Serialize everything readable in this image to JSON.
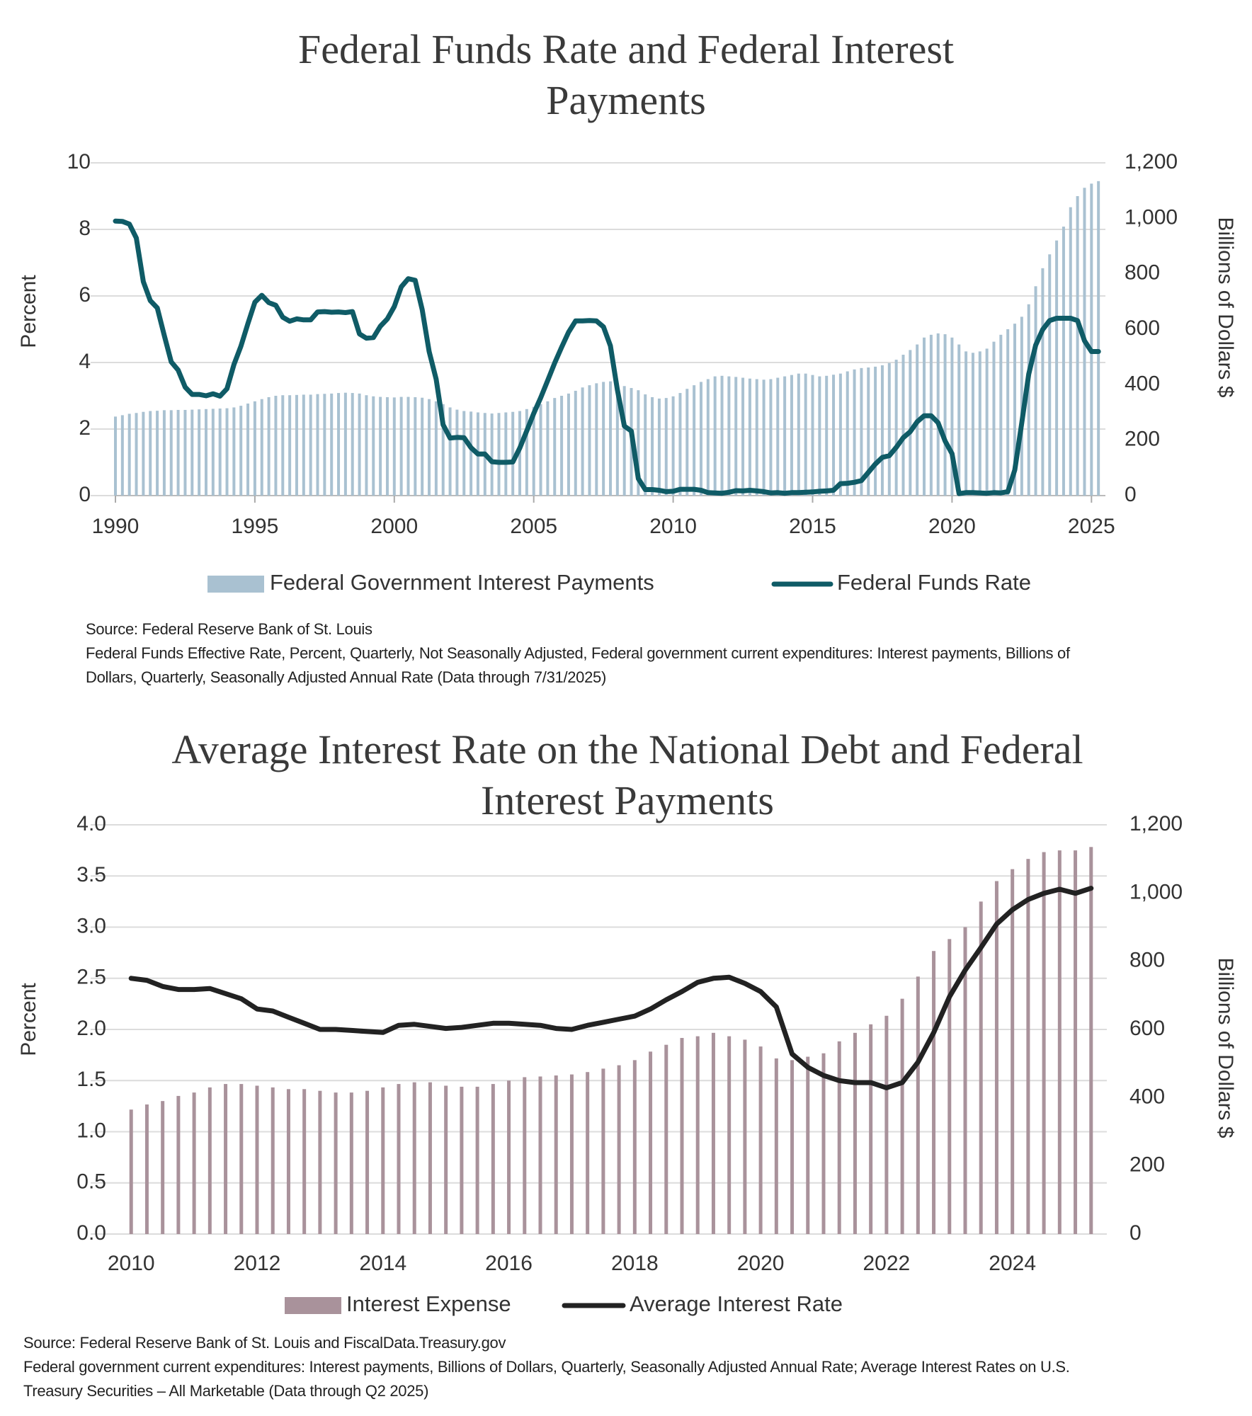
{
  "chart_data": [
    {
      "type": "combo",
      "title": "Federal Funds Rate and Federal Interest Payments",
      "ylabel": "Percent",
      "y2label": "Billions of Dollars $",
      "notes": [
        "Source: Federal Reserve Bank of St. Louis",
        "Federal Funds Effective Rate, Percent, Quarterly, Not Seasonally Adjusted, Federal government current expenditures: Interest payments, Billions of Dollars, Quarterly, Seasonally Adjusted Annual Rate (Data through 7/31/2025)"
      ],
      "x": [
        1990,
        1990.25,
        1990.5,
        1990.75,
        1991,
        1991.25,
        1991.5,
        1991.75,
        1992,
        1992.25,
        1992.5,
        1992.75,
        1993,
        1993.25,
        1993.5,
        1993.75,
        1994,
        1994.25,
        1994.5,
        1994.75,
        1995,
        1995.25,
        1995.5,
        1995.75,
        1996,
        1996.25,
        1996.5,
        1996.75,
        1997,
        1997.25,
        1997.5,
        1997.75,
        1998,
        1998.25,
        1998.5,
        1998.75,
        1999,
        1999.25,
        1999.5,
        1999.75,
        2000,
        2000.25,
        2000.5,
        2000.75,
        2001,
        2001.25,
        2001.5,
        2001.75,
        2002,
        2002.25,
        2002.5,
        2002.75,
        2003,
        2003.25,
        2003.5,
        2003.75,
        2004,
        2004.25,
        2004.5,
        2004.75,
        2005,
        2005.25,
        2005.5,
        2005.75,
        2006,
        2006.25,
        2006.5,
        2006.75,
        2007,
        2007.25,
        2007.5,
        2007.75,
        2008,
        2008.25,
        2008.5,
        2008.75,
        2009,
        2009.25,
        2009.5,
        2009.75,
        2010,
        2010.25,
        2010.5,
        2010.75,
        2011,
        2011.25,
        2011.5,
        2011.75,
        2012,
        2012.25,
        2012.5,
        2012.75,
        2013,
        2013.25,
        2013.5,
        2013.75,
        2014,
        2014.25,
        2014.5,
        2014.75,
        2015,
        2015.25,
        2015.5,
        2015.75,
        2016,
        2016.25,
        2016.5,
        2016.75,
        2017,
        2017.25,
        2017.5,
        2017.75,
        2018,
        2018.25,
        2018.5,
        2018.75,
        2019,
        2019.25,
        2019.5,
        2019.75,
        2020,
        2020.25,
        2020.5,
        2020.75,
        2021,
        2021.25,
        2021.5,
        2021.75,
        2022,
        2022.25,
        2022.5,
        2022.75,
        2023,
        2023.25,
        2023.5,
        2023.75,
        2024,
        2024.25,
        2024.5,
        2024.75,
        2025,
        2025.25
      ],
      "series": [
        {
          "name": "Federal Government Interest Payments",
          "type": "bar",
          "axis": "y2",
          "color": "#a9c1d1",
          "values": [
            285,
            290,
            295,
            298,
            302,
            305,
            306,
            308,
            308,
            309,
            309,
            310,
            311,
            312,
            313,
            314,
            315,
            318,
            324,
            332,
            340,
            348,
            355,
            360,
            362,
            362,
            363,
            364,
            364,
            366,
            367,
            368,
            370,
            371,
            370,
            368,
            362,
            358,
            356,
            355,
            354,
            356,
            356,
            355,
            353,
            348,
            340,
            330,
            318,
            310,
            305,
            303,
            300,
            298,
            296,
            298,
            300,
            302,
            305,
            312,
            320,
            330,
            340,
            352,
            360,
            368,
            378,
            390,
            398,
            405,
            410,
            412,
            405,
            395,
            388,
            380,
            365,
            355,
            350,
            352,
            358,
            370,
            385,
            398,
            410,
            420,
            430,
            432,
            430,
            428,
            425,
            422,
            420,
            418,
            420,
            425,
            430,
            435,
            440,
            440,
            435,
            430,
            432,
            436,
            440,
            448,
            455,
            460,
            462,
            465,
            470,
            478,
            490,
            508,
            525,
            545,
            570,
            580,
            585,
            582,
            570,
            545,
            520,
            515,
            520,
            530,
            555,
            580,
            600,
            620,
            645,
            690,
            755,
            820,
            870,
            920,
            970,
            1040,
            1080,
            1110,
            1125,
            1134
          ]
        },
        {
          "name": "Federal Funds Rate",
          "type": "line",
          "color": "#0f5b66",
          "values": [
            8.25,
            8.24,
            8.16,
            7.74,
            6.43,
            5.86,
            5.64,
            4.82,
            4.02,
            3.77,
            3.26,
            3.04,
            3.04,
            3.0,
            3.06,
            2.99,
            3.21,
            3.94,
            4.49,
            5.17,
            5.81,
            6.02,
            5.8,
            5.72,
            5.36,
            5.24,
            5.31,
            5.28,
            5.28,
            5.52,
            5.53,
            5.51,
            5.52,
            5.5,
            5.53,
            4.86,
            4.73,
            4.75,
            5.09,
            5.31,
            5.68,
            6.27,
            6.52,
            6.47,
            5.59,
            4.33,
            3.5,
            2.13,
            1.73,
            1.75,
            1.74,
            1.44,
            1.25,
            1.25,
            1.02,
            1.0,
            1.0,
            1.01,
            1.43,
            1.95,
            2.47,
            2.94,
            3.46,
            3.98,
            4.46,
            4.91,
            5.25,
            5.25,
            5.26,
            5.25,
            5.07,
            4.5,
            3.18,
            2.09,
            1.94,
            0.51,
            0.18,
            0.18,
            0.16,
            0.12,
            0.13,
            0.19,
            0.19,
            0.19,
            0.16,
            0.09,
            0.08,
            0.07,
            0.1,
            0.15,
            0.14,
            0.16,
            0.14,
            0.12,
            0.08,
            0.09,
            0.07,
            0.09,
            0.09,
            0.1,
            0.11,
            0.13,
            0.14,
            0.16,
            0.36,
            0.37,
            0.4,
            0.45,
            0.7,
            0.95,
            1.15,
            1.2,
            1.45,
            1.74,
            1.92,
            2.22,
            2.4,
            2.4,
            2.19,
            1.64,
            1.26,
            0.06,
            0.09,
            0.09,
            0.08,
            0.07,
            0.09,
            0.08,
            0.12,
            0.77,
            2.19,
            3.65,
            4.52,
            4.99,
            5.26,
            5.33,
            5.33,
            5.33,
            5.26,
            4.65,
            4.33,
            4.33
          ]
        }
      ],
      "xlim": [
        1990,
        2025.5
      ],
      "xticks": [
        1990,
        1995,
        2000,
        2005,
        2010,
        2015,
        2020,
        2025
      ],
      "ylim": [
        0,
        10
      ],
      "yticks": [
        0,
        2,
        4,
        6,
        8,
        10
      ],
      "y2lim": [
        0,
        1200
      ],
      "y2ticks": [
        0,
        200,
        400,
        600,
        800,
        {
          "value": 1000,
          "label": "1,000"
        },
        {
          "value": 1200,
          "label": "1,200"
        }
      ],
      "grid": true,
      "legend": "bottom"
    },
    {
      "type": "combo",
      "title": "Average Interest Rate on the National Debt and Federal Interest Payments",
      "ylabel": "Percent",
      "y2label": "Billions of Dollars $",
      "notes": [
        "Source: Federal Reserve Bank of St. Louis and FiscalData.Treasury.gov",
        "Federal government current expenditures: Interest payments, Billions of Dollars, Quarterly, Seasonally Adjusted Annual Rate; Average Interest Rates on U.S. Treasury Securities – All Marketable (Data through Q2 2025)"
      ],
      "x": [
        2010,
        2010.25,
        2010.5,
        2010.75,
        2011,
        2011.25,
        2011.5,
        2011.75,
        2012,
        2012.25,
        2012.5,
        2012.75,
        2013,
        2013.25,
        2013.5,
        2013.75,
        2014,
        2014.25,
        2014.5,
        2014.75,
        2015,
        2015.25,
        2015.5,
        2015.75,
        2016,
        2016.25,
        2016.5,
        2016.75,
        2017,
        2017.25,
        2017.5,
        2017.75,
        2018,
        2018.25,
        2018.5,
        2018.75,
        2019,
        2019.25,
        2019.5,
        2019.75,
        2020,
        2020.25,
        2020.5,
        2020.75,
        2021,
        2021.25,
        2021.5,
        2021.75,
        2022,
        2022.25,
        2022.5,
        2022.75,
        2023,
        2023.25,
        2023.5,
        2023.75,
        2024,
        2024.25,
        2024.5,
        2024.75,
        2025,
        2025.25
      ],
      "series": [
        {
          "name": "Interest Expense",
          "type": "bar",
          "axis": "y2",
          "color": "#a9929b",
          "values": [
            365,
            380,
            390,
            405,
            415,
            430,
            440,
            440,
            435,
            430,
            425,
            425,
            420,
            415,
            415,
            420,
            430,
            440,
            445,
            445,
            435,
            432,
            432,
            440,
            450,
            460,
            462,
            465,
            468,
            475,
            485,
            495,
            510,
            535,
            555,
            575,
            580,
            590,
            580,
            570,
            550,
            515,
            510,
            520,
            530,
            565,
            590,
            615,
            640,
            690,
            755,
            830,
            865,
            900,
            975,
            1035,
            1070,
            1100,
            1120,
            1125,
            1125,
            1135
          ]
        },
        {
          "name": "Average Interest Rate",
          "type": "line",
          "color": "#222222",
          "values": [
            2.5,
            2.48,
            2.42,
            2.39,
            2.39,
            2.4,
            2.35,
            2.3,
            2.2,
            2.18,
            2.12,
            2.06,
            2.0,
            2.0,
            1.99,
            1.98,
            1.97,
            2.04,
            2.05,
            2.03,
            2.01,
            2.02,
            2.04,
            2.06,
            2.06,
            2.05,
            2.04,
            2.01,
            2.0,
            2.04,
            2.07,
            2.1,
            2.13,
            2.2,
            2.29,
            2.37,
            2.46,
            2.5,
            2.51,
            2.45,
            2.37,
            2.22,
            1.76,
            1.63,
            1.55,
            1.5,
            1.48,
            1.48,
            1.43,
            1.48,
            1.68,
            1.97,
            2.32,
            2.58,
            2.8,
            3.03,
            3.17,
            3.27,
            3.33,
            3.37,
            3.33,
            3.38
          ]
        }
      ],
      "xlim": [
        2009.75,
        2025.5
      ],
      "xticks": [
        2010,
        2012,
        2014,
        2016,
        2018,
        2020,
        2022,
        2024
      ],
      "ylim": [
        0,
        4
      ],
      "yticks": [
        {
          "value": 0,
          "label": "0.0"
        },
        {
          "value": 0.5,
          "label": "0.5"
        },
        {
          "value": 1,
          "label": "1.0"
        },
        {
          "value": 1.5,
          "label": "1.5"
        },
        {
          "value": 2,
          "label": "2.0"
        },
        {
          "value": 2.5,
          "label": "2.5"
        },
        {
          "value": 3,
          "label": "3.0"
        },
        {
          "value": 3.5,
          "label": "3.5"
        },
        {
          "value": 4,
          "label": "4.0"
        }
      ],
      "y2lim": [
        0,
        1200
      ],
      "y2ticks": [
        0,
        200,
        400,
        600,
        800,
        {
          "value": 1000,
          "label": "1,000"
        },
        {
          "value": 1200,
          "label": "1,200"
        }
      ],
      "grid": true,
      "legend": "bottom"
    }
  ]
}
